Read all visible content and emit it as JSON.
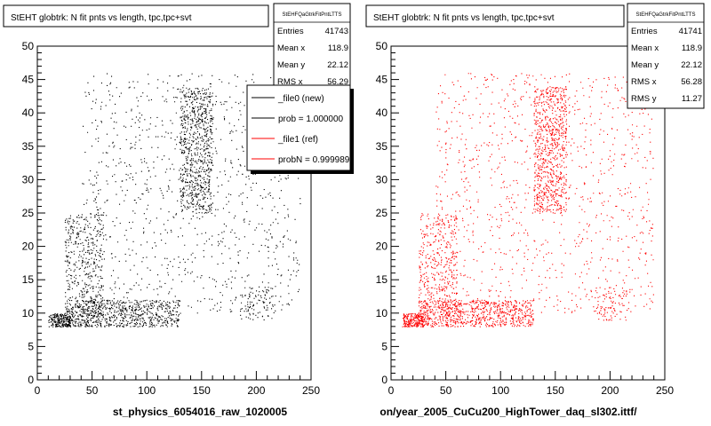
{
  "panels": [
    {
      "title": "StEHT globtrk: N fit pnts vs length, tpc,tpc+svt",
      "xlabel": "st_physics_6054016_raw_1020005",
      "marker_color": "#000000",
      "stats": {
        "header": "StEHFQaGtrkFitPntLTTS",
        "rows": [
          {
            "label": "Entries",
            "value": "41743"
          },
          {
            "label": "Mean x",
            "value": "118.9"
          },
          {
            "label": "Mean y",
            "value": "22.12"
          },
          {
            "label": "RMS x",
            "value": "56.29"
          }
        ]
      },
      "legend": {
        "entries": [
          {
            "label": "_file0 (new)",
            "color": "#000000"
          },
          {
            "label": "prob = 1.000000",
            "color": "#000000"
          },
          {
            "label": "_file1 (ref)",
            "color": "#ff0000"
          },
          {
            "label": "probN = 0.999989",
            "color": "#ff0000"
          }
        ]
      }
    },
    {
      "title": "StEHT globtrk: N fit pnts vs length, tpc,tpc+svt",
      "xlabel": "on/year_2005_CuCu200_HighTower_daq_sl302.ittf/",
      "marker_color": "#ff0000",
      "stats": {
        "header": "StEHFQaGtrkFitPntLTTS",
        "rows": [
          {
            "label": "Entries",
            "value": "41741"
          },
          {
            "label": "Mean x",
            "value": "118.9"
          },
          {
            "label": "Mean y",
            "value": "22.12"
          },
          {
            "label": "RMS x",
            "value": "56.28"
          },
          {
            "label": "RMS y",
            "value": "11.27"
          }
        ]
      }
    }
  ],
  "chart_data": [
    {
      "type": "scatter",
      "title": "StEHT globtrk: N fit pnts vs length, tpc,tpc+svt",
      "xlabel": "st_physics_6054016_raw_1020005",
      "ylabel": "",
      "xlim": [
        0,
        250
      ],
      "ylim": [
        0,
        50
      ],
      "x_ticks": [
        "0",
        "50",
        "100",
        "150",
        "200",
        "250"
      ],
      "y_ticks": [
        "0",
        "5",
        "10",
        "15",
        "20",
        "25",
        "30",
        "35",
        "40",
        "45",
        "50"
      ],
      "grid": false,
      "legend_position": "top-right",
      "entries": 41743,
      "mean_x": 118.9,
      "mean_y": 22.12,
      "rms_x": 56.29,
      "density_regions": [
        {
          "x": [
            10,
            30
          ],
          "y": [
            8,
            10
          ],
          "weight": 1.5
        },
        {
          "x": [
            25,
            130
          ],
          "y": [
            8,
            12
          ],
          "weight": 5
        },
        {
          "x": [
            25,
            60
          ],
          "y": [
            8,
            25
          ],
          "weight": 3
        },
        {
          "x": [
            130,
            160
          ],
          "y": [
            25,
            44
          ],
          "weight": 5
        },
        {
          "x": [
            40,
            240
          ],
          "y": [
            10,
            46
          ],
          "weight": 7
        },
        {
          "x": [
            185,
            215
          ],
          "y": [
            9,
            14
          ],
          "weight": 0.6
        }
      ]
    },
    {
      "type": "scatter",
      "title": "StEHT globtrk: N fit pnts vs length, tpc,tpc+svt",
      "xlabel": "on/year_2005_CuCu200_HighTower_daq_sl302.ittf/",
      "ylabel": "",
      "xlim": [
        0,
        250
      ],
      "ylim": [
        0,
        50
      ],
      "x_ticks": [
        "0",
        "50",
        "100",
        "150",
        "200",
        "250"
      ],
      "y_ticks": [
        "0",
        "5",
        "10",
        "15",
        "20",
        "25",
        "30",
        "35",
        "40",
        "45",
        "50"
      ],
      "grid": false,
      "entries": 41741,
      "mean_x": 118.9,
      "mean_y": 22.12,
      "rms_x": 56.28,
      "rms_y": 11.27,
      "density_regions": [
        {
          "x": [
            10,
            30
          ],
          "y": [
            8,
            10
          ],
          "weight": 1.5
        },
        {
          "x": [
            25,
            130
          ],
          "y": [
            8,
            12
          ],
          "weight": 5
        },
        {
          "x": [
            25,
            60
          ],
          "y": [
            8,
            25
          ],
          "weight": 3
        },
        {
          "x": [
            130,
            160
          ],
          "y": [
            25,
            44
          ],
          "weight": 5
        },
        {
          "x": [
            40,
            240
          ],
          "y": [
            10,
            46
          ],
          "weight": 7
        },
        {
          "x": [
            185,
            215
          ],
          "y": [
            9,
            14
          ],
          "weight": 0.6
        }
      ]
    }
  ]
}
